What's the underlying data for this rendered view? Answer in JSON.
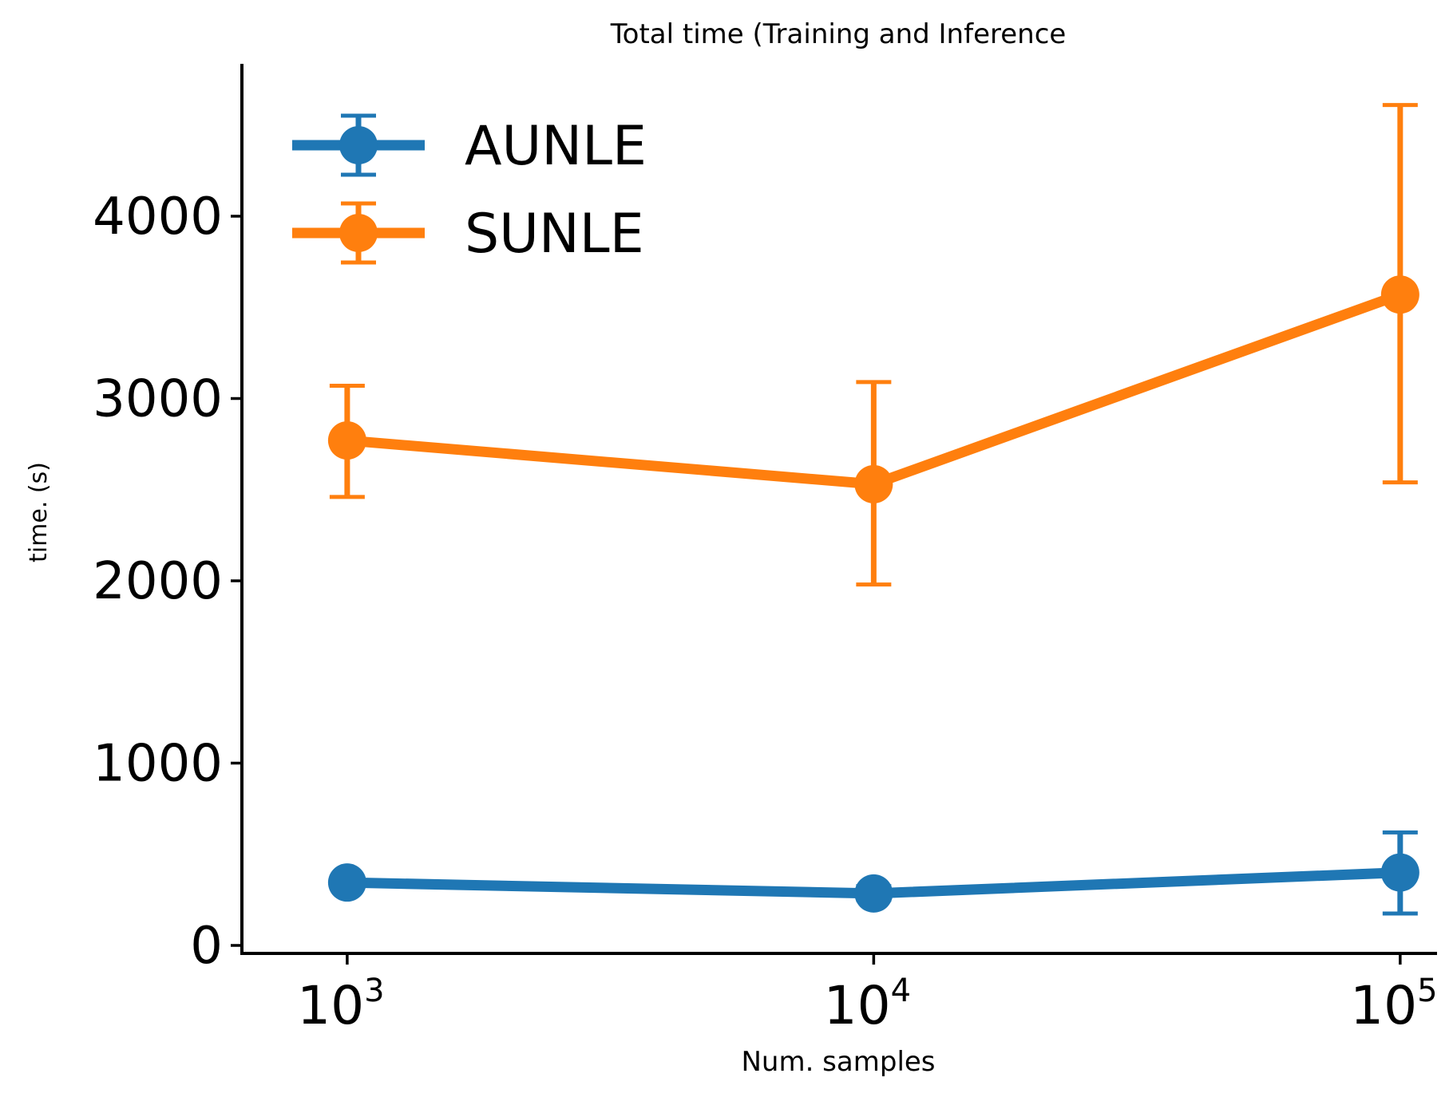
{
  "chart_data": {
    "type": "line",
    "title": "Total time (Training and Inference",
    "xlabel": "Num. samples",
    "ylabel": "time. (s)",
    "x_scale": "log",
    "x": [
      1000,
      10000,
      100000
    ],
    "x_ticks": [
      {
        "value": 1000,
        "base": "10",
        "exp": "3"
      },
      {
        "value": 10000,
        "base": "10",
        "exp": "4"
      },
      {
        "value": 100000,
        "base": "10",
        "exp": "5"
      }
    ],
    "y_ticks": [
      0,
      1000,
      2000,
      3000,
      4000
    ],
    "ylim": [
      -50,
      4800
    ],
    "grid": false,
    "legend_position": "top-left",
    "series": [
      {
        "name": "AUNLE",
        "color": "#1f77b4",
        "values": [
          345,
          285,
          400
        ],
        "error_low": [
          325,
          250,
          175
        ],
        "error_high": [
          365,
          325,
          620
        ]
      },
      {
        "name": "SUNLE",
        "color": "#ff7f0e",
        "values": [
          2770,
          2530,
          3570
        ],
        "error_low": [
          2460,
          1980,
          2540
        ],
        "error_high": [
          3070,
          3090,
          4610
        ]
      }
    ]
  }
}
